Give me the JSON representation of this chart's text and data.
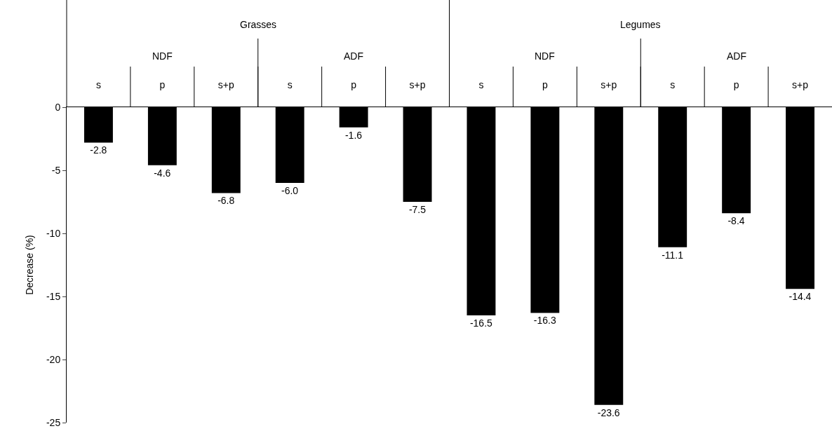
{
  "chart_data": {
    "type": "bar",
    "ylabel": "Decrease (%)",
    "categories": [
      "s",
      "p",
      "s+p",
      "s",
      "p",
      "s+p",
      "s",
      "p",
      "s+p",
      "s",
      "p",
      "s+p"
    ],
    "values": [
      -2.8,
      -4.6,
      -6.8,
      -6.0,
      -1.6,
      -7.5,
      -16.5,
      -16.3,
      -23.6,
      -11.1,
      -8.4,
      -14.4
    ],
    "value_labels": [
      "-2.8",
      "-4.6",
      "-6.8",
      "-6.0",
      "-1.6",
      "-7.5",
      "-16.5",
      "-16.3",
      "-23.6",
      "-11.1",
      "-8.4",
      "-14.4"
    ],
    "color": "#000000",
    "annotations": [
      "Grasses",
      "Legumes",
      "NDF",
      "ADF",
      "NDF",
      "ADF"
    ],
    "ylim": [
      -25,
      0
    ],
    "yticks": [
      -25,
      -20,
      -15,
      -10,
      -5,
      0
    ],
    "legend": false
  }
}
